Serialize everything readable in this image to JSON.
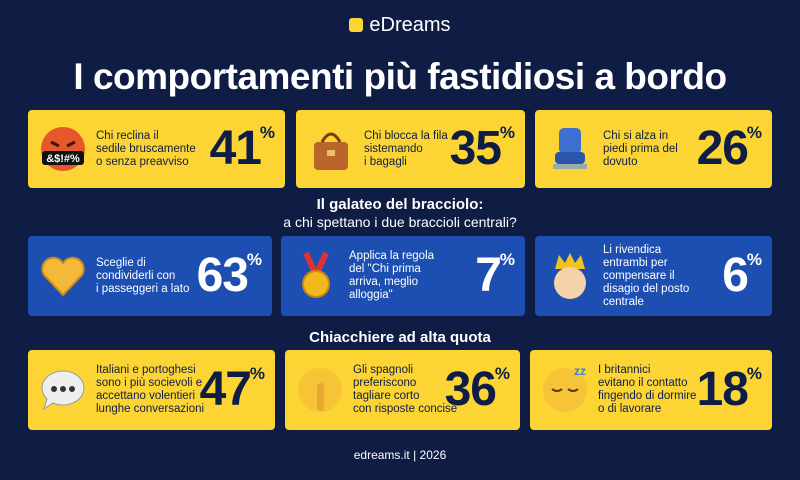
{
  "logo": "eDreams",
  "title": "I comportamenti più fastidiosi a bordo",
  "sections": [
    {
      "cards": [
        {
          "lines": [
            "Chi reclina il",
            "sedile bruscamente",
            "o senza preavviso"
          ],
          "value": "41",
          "unit": "%",
          "icon_text": "&$!#%"
        },
        {
          "lines": [
            "Chi blocca la fila",
            "sistemando",
            "i bagagli"
          ],
          "value": "35",
          "unit": "%"
        },
        {
          "lines": [
            "Chi si alza in",
            "piedi prima del",
            "dovuto"
          ],
          "value": "26",
          "unit": "%"
        }
      ]
    },
    {
      "heading": "Il galateo del bracciolo:",
      "subheading": "a chi spettano i due braccioli centrali?",
      "cards": [
        {
          "lines": [
            "Sceglie di",
            "condividerli con",
            "i passeggeri a lato"
          ],
          "value": "63",
          "unit": "%"
        },
        {
          "lines": [
            "Applica la regola",
            "del \"Chi prima",
            "arriva, meglio",
            "alloggia\""
          ],
          "value": "7",
          "unit": "%"
        },
        {
          "lines": [
            "Li rivendica",
            "entrambi per",
            "compensare il",
            "disagio del posto",
            "centrale"
          ],
          "value": "6",
          "unit": "%"
        }
      ]
    },
    {
      "heading": "Chiacchiere ad alta quota",
      "cards": [
        {
          "lines": [
            "Italiani e portoghesi",
            "sono i più socievoli e",
            "accettano volentieri",
            "lunghe conversazioni"
          ],
          "value": "47",
          "unit": "%"
        },
        {
          "lines": [
            "Gli spagnoli",
            "preferiscono",
            "tagliare corto",
            "con risposte concise"
          ],
          "value": "36",
          "unit": "%"
        },
        {
          "lines": [
            "I britannici",
            "evitano il contatto",
            "fingendo di dormire",
            "o di lavorare"
          ],
          "value": "18",
          "unit": "%"
        }
      ]
    }
  ],
  "footer": "edreams.it | 2026"
}
